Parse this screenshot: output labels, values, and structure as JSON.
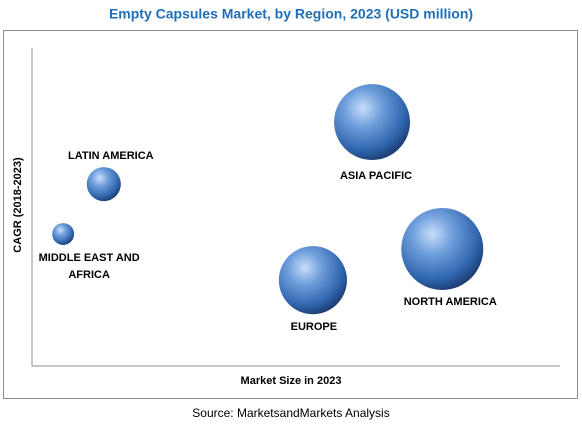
{
  "chart_data": {
    "type": "bubble",
    "title": "Empty Capsules Market, by Region, 2023 (USD million)",
    "x_label": "Market Size in 2023",
    "y_label": "CAGR (2018-2023)",
    "source": "Source: MarketsandMarkets Analysis",
    "categories": [
      "ASIA PACIFIC",
      "NORTH AMERICA",
      "EUROPE",
      "LATIN AMERICA",
      "MIDDLE EAST AND AFRICA"
    ],
    "x": [
      64.4,
      77.7,
      53.2,
      13.6,
      5.9
    ],
    "values": [
      76.7,
      36.8,
      27.0,
      57.2,
      41.5
    ],
    "sizes": [
      14.4,
      16.8,
      11.6,
      2.9,
      1.2
    ],
    "color": "#2e64ac",
    "xlim": [
      0,
      100
    ],
    "ylim": [
      0,
      100
    ]
  }
}
